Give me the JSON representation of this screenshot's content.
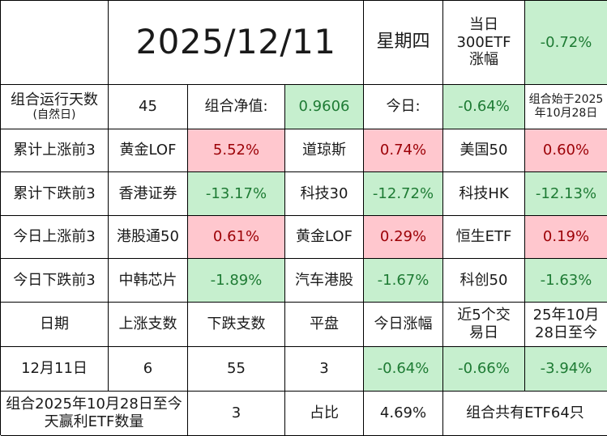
{
  "header": {
    "date": "2025/12/11",
    "weekday": "星期四",
    "etf300_label": "当日300ETF涨幅",
    "etf300_value": "-0.72%"
  },
  "summary": {
    "run_days_label": "组合运行天数",
    "run_days_note": "(自然日)",
    "run_days_value": "45",
    "nav_label": "组合净值:",
    "nav_value": "0.9606",
    "today_label": "今日:",
    "today_value": "-0.64%",
    "start_note": "组合始于2025年10月28日"
  },
  "rankings": [
    {
      "label": "累计上涨前3",
      "items": [
        {
          "name": "黄金LOF",
          "value": "5.52%",
          "tone": "red"
        },
        {
          "name": "道琼斯",
          "value": "0.74%",
          "tone": "red"
        },
        {
          "name": "美国50",
          "value": "0.60%",
          "tone": "red"
        }
      ]
    },
    {
      "label": "累计下跌前3",
      "items": [
        {
          "name": "香港证券",
          "value": "-13.17%",
          "tone": "green"
        },
        {
          "name": "科技30",
          "value": "-12.72%",
          "tone": "green"
        },
        {
          "name": "科技HK",
          "value": "-12.13%",
          "tone": "green"
        }
      ]
    },
    {
      "label": "今日上涨前3",
      "items": [
        {
          "name": "港股通50",
          "value": "0.61%",
          "tone": "red"
        },
        {
          "name": "黄金LOF",
          "value": "0.29%",
          "tone": "red"
        },
        {
          "name": "恒生ETF",
          "value": "0.19%",
          "tone": "red"
        }
      ]
    },
    {
      "label": "今日下跌前3",
      "items": [
        {
          "name": "中韩芯片",
          "value": "-1.89%",
          "tone": "green"
        },
        {
          "name": "汽车港股",
          "value": "-1.67%",
          "tone": "green"
        },
        {
          "name": "科创50",
          "value": "-1.63%",
          "tone": "green"
        }
      ]
    }
  ],
  "stats_table": {
    "headers": [
      "日期",
      "上涨支数",
      "下跌支数",
      "平盘",
      "今日涨幅",
      "近5个交易日",
      "25年10月28日至今"
    ],
    "row": [
      "12月11日",
      "6",
      "55",
      "3",
      "-0.64%",
      "-0.66%",
      "-3.94%"
    ]
  },
  "footer": {
    "profit_label": "组合2025年10月28日至今天赢利ETF数量",
    "profit_count": "3",
    "ratio_label": "占比",
    "ratio_value": "4.69%",
    "total_label": "组合共有ETF64只"
  },
  "colors": {
    "green_fill": "#c6efce",
    "green_text": "#1e7b34",
    "red_fill": "#ffc7ce",
    "red_text": "#9c0006"
  }
}
